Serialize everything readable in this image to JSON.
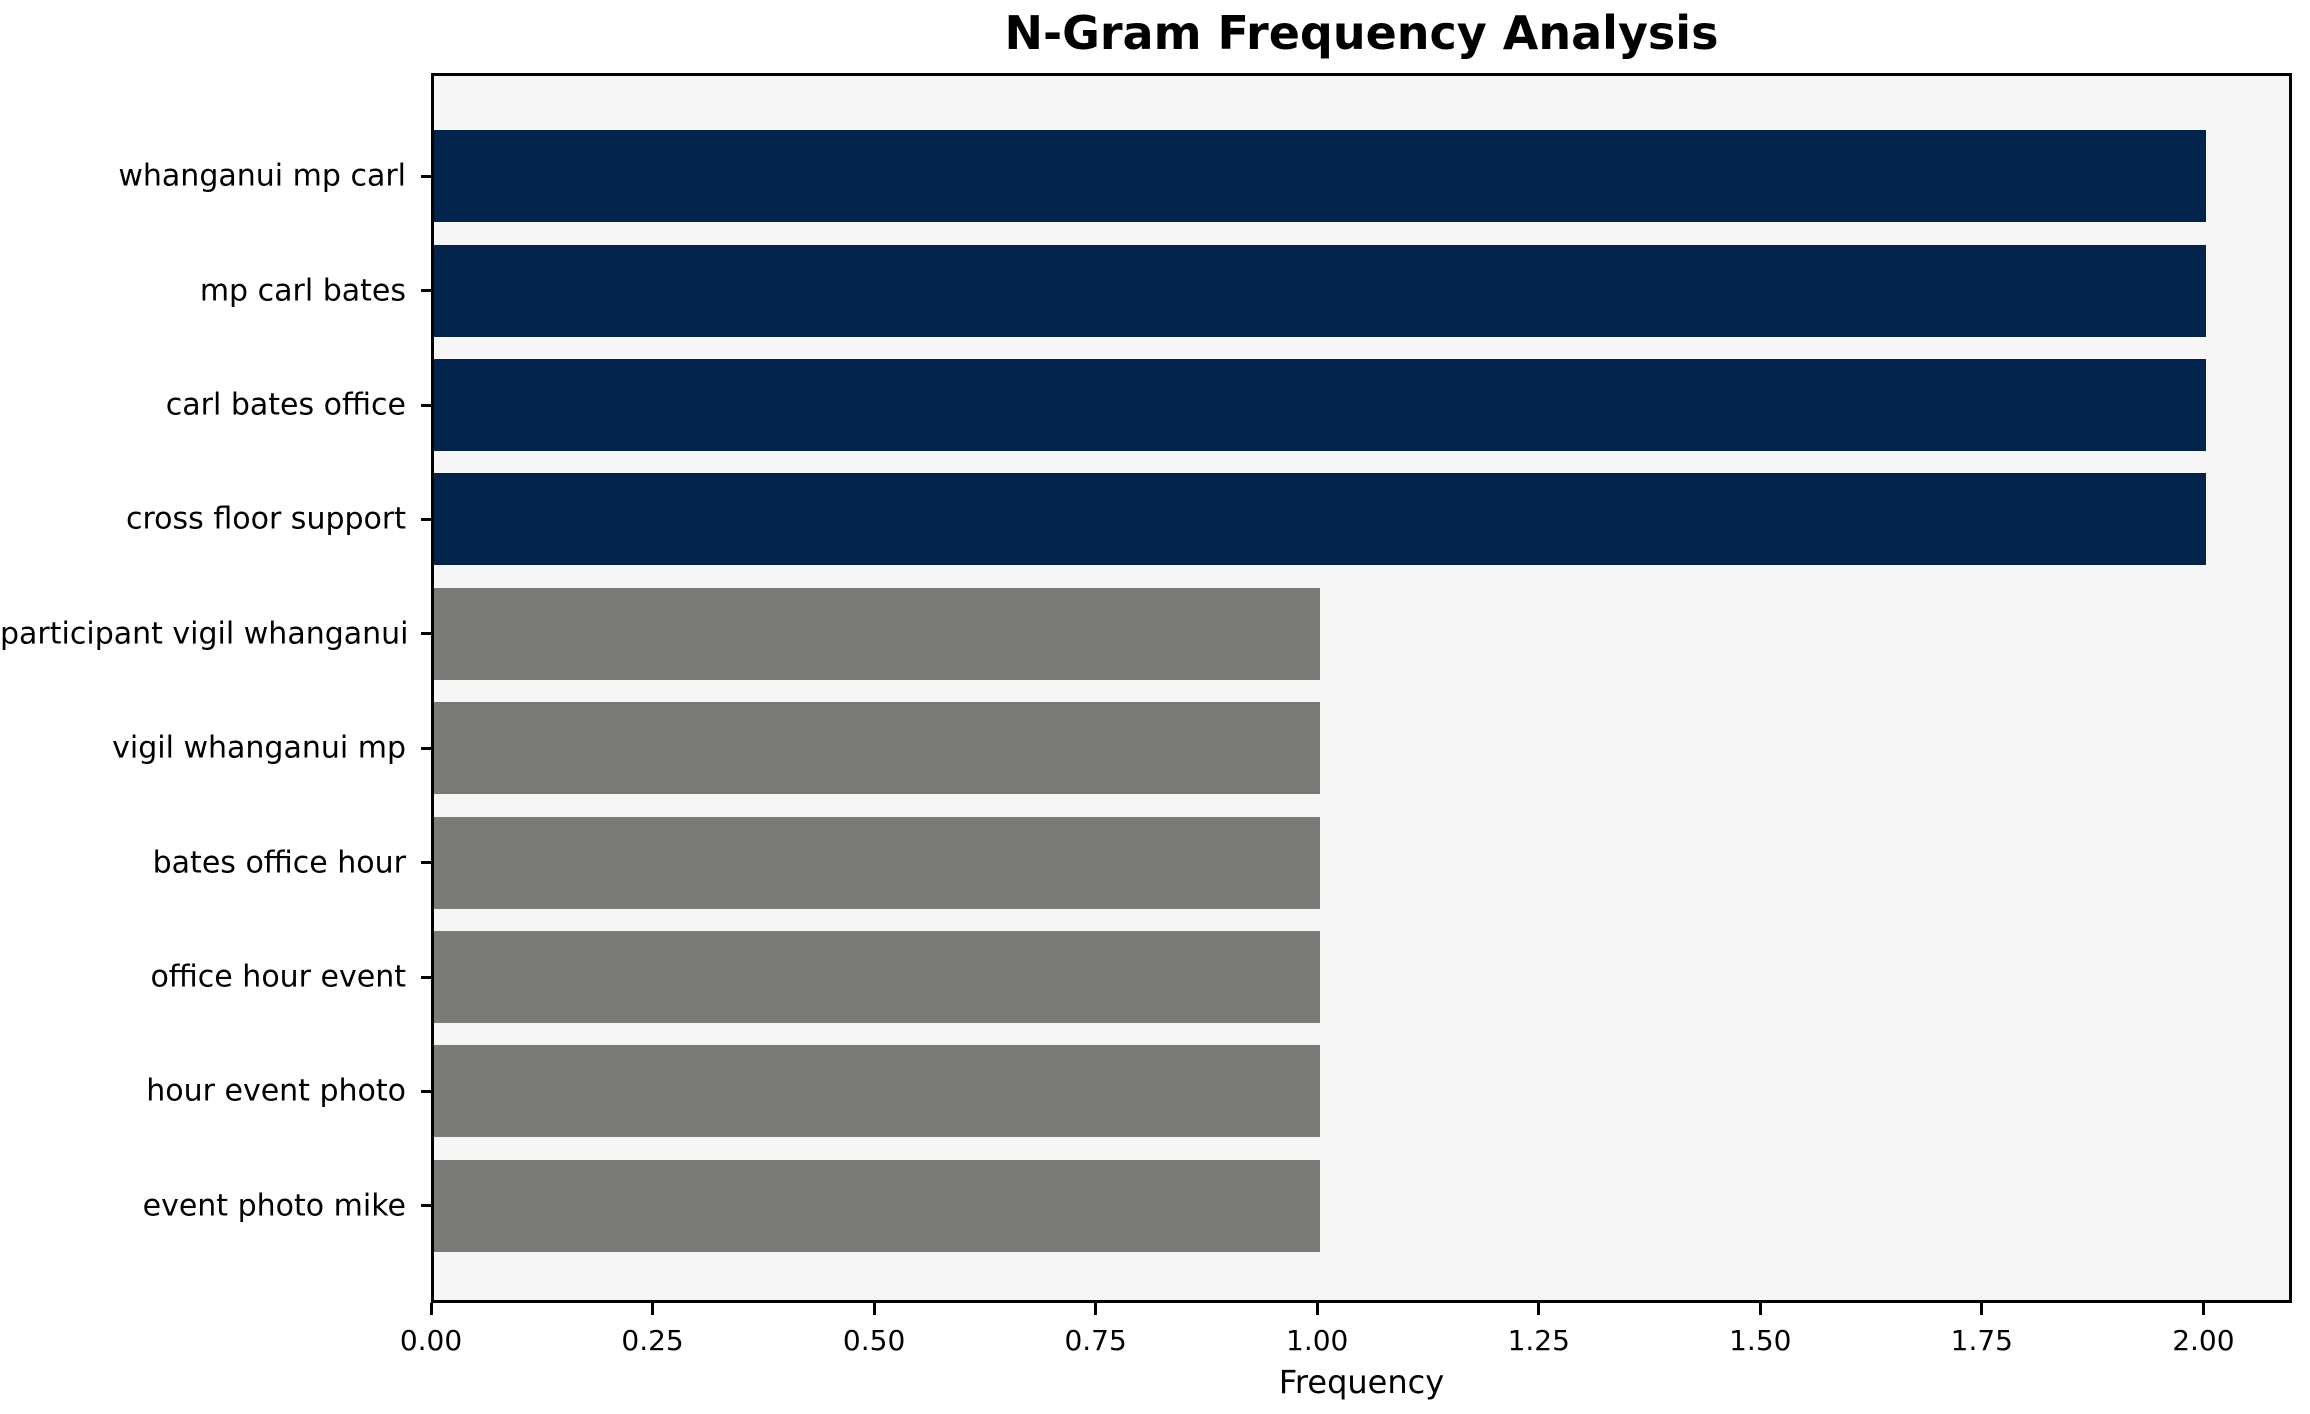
{
  "chart_data": {
    "type": "bar",
    "orientation": "horizontal",
    "title": "N-Gram Frequency Analysis",
    "xlabel": "Frequency",
    "ylabel": "",
    "categories": [
      "whanganui mp carl",
      "mp carl bates",
      "carl bates office",
      "cross floor support",
      "participant vigil whanganui",
      "vigil whanganui mp",
      "bates office hour",
      "office hour event",
      "hour event photo",
      "event photo mike"
    ],
    "values": [
      2,
      2,
      2,
      2,
      1,
      1,
      1,
      1,
      1,
      1
    ],
    "series": [
      {
        "name": "frequency",
        "values": [
          2,
          2,
          2,
          2,
          1,
          1,
          1,
          1,
          1,
          1
        ]
      }
    ],
    "xlim": [
      0,
      2.1
    ],
    "xticks": [
      0,
      0.25,
      0.5,
      0.75,
      1.0,
      1.25,
      1.5,
      1.75,
      2.0
    ],
    "xtick_labels": [
      "0.00",
      "0.25",
      "0.50",
      "0.75",
      "1.00",
      "1.25",
      "1.50",
      "1.75",
      "2.00"
    ],
    "grid": false,
    "legend": null,
    "bar_height_fraction": 0.8,
    "colors": {
      "bar_freq_2": "#02234b",
      "bar_freq_1": "#7a7a76",
      "plot_background": "#f6f6f6",
      "figure_background": "#ffffff",
      "spine": "#000000",
      "text": "#000000"
    },
    "bar_colors": [
      "#02234b",
      "#02234b",
      "#02234b",
      "#02234b",
      "#7a7a76",
      "#7a7a76",
      "#7a7a76",
      "#7a7a76",
      "#7a7a76",
      "#7a7a76"
    ]
  }
}
